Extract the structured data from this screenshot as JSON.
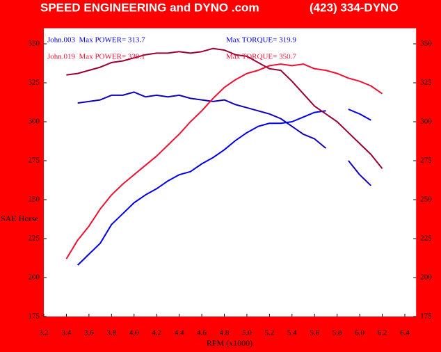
{
  "chart_data": {
    "type": "line",
    "title": "SPEED ENGINEERING and DYNO .com",
    "subtitle": "(423) 334-DYNO",
    "xlabel": "RPM (x1000)",
    "ylabel": "SAE Horse",
    "background": "#ff0000",
    "plot_background": "#ffffff",
    "grid": false,
    "annotations": [
      {
        "text": "John.003  Max POWER= 313.7",
        "color": "#0000dd"
      },
      {
        "text": "Max TORQUE= 319.9",
        "color": "#0000dd"
      },
      {
        "text": "John.019  Max POWER= 339.1",
        "color": "#ee1133"
      },
      {
        "text": "Max TORQUE= 350.7",
        "color": "#ee1133"
      }
    ],
    "x": [
      3.4,
      3.5,
      3.6,
      3.7,
      3.8,
      3.9,
      4.0,
      4.1,
      4.2,
      4.3,
      4.4,
      4.5,
      4.6,
      4.7,
      4.8,
      4.9,
      5.0,
      5.1,
      5.2,
      5.3,
      5.4,
      5.5,
      5.6,
      5.7,
      5.8,
      5.9,
      6.0,
      6.1,
      6.2
    ],
    "series": [
      {
        "color": "#1100bb",
        "values": [
          null,
          312,
          313,
          314,
          317,
          317,
          319,
          316,
          317,
          316,
          317,
          315,
          314,
          313,
          314,
          311,
          309,
          307,
          305,
          302,
          297,
          292,
          289,
          283,
          null,
          275,
          266,
          259,
          null
        ]
      },
      {
        "color": "#0000ee",
        "values": [
          null,
          208,
          215,
          222,
          234,
          241,
          248,
          253,
          257,
          262,
          266,
          268,
          273,
          277,
          282,
          288,
          293,
          297,
          299,
          299,
          300,
          303,
          306,
          307,
          null,
          308,
          305,
          301,
          null
        ]
      },
      {
        "color": "#990033",
        "values": [
          330,
          331,
          333,
          335,
          338,
          339,
          341,
          343,
          344,
          344,
          345,
          344,
          345,
          347,
          346,
          343,
          342,
          338,
          334,
          333,
          326,
          318,
          310,
          305,
          300,
          293,
          286,
          279,
          270
        ]
      },
      {
        "color": "#ee1133",
        "values": [
          212,
          224,
          233,
          244,
          253,
          260,
          266,
          272,
          278,
          285,
          292,
          300,
          307,
          315,
          322,
          327,
          331,
          333,
          336,
          337,
          336,
          337,
          334,
          333,
          331,
          328,
          326,
          323,
          318
        ]
      }
    ],
    "xlim": [
      3.2,
      6.5
    ],
    "ylim": [
      175,
      360
    ],
    "xticks": [
      3.2,
      3.4,
      3.6,
      3.8,
      {
        "value": 4,
        "label": "4.0"
      },
      4.2,
      4.4,
      4.6,
      4.8,
      {
        "value": 5,
        "label": "5.0"
      },
      5.2,
      5.4,
      5.6,
      5.8,
      {
        "value": 6,
        "label": "6.0"
      },
      6.2,
      6.4
    ],
    "yticks": [
      175,
      200,
      225,
      250,
      275,
      300,
      325,
      350
    ]
  }
}
